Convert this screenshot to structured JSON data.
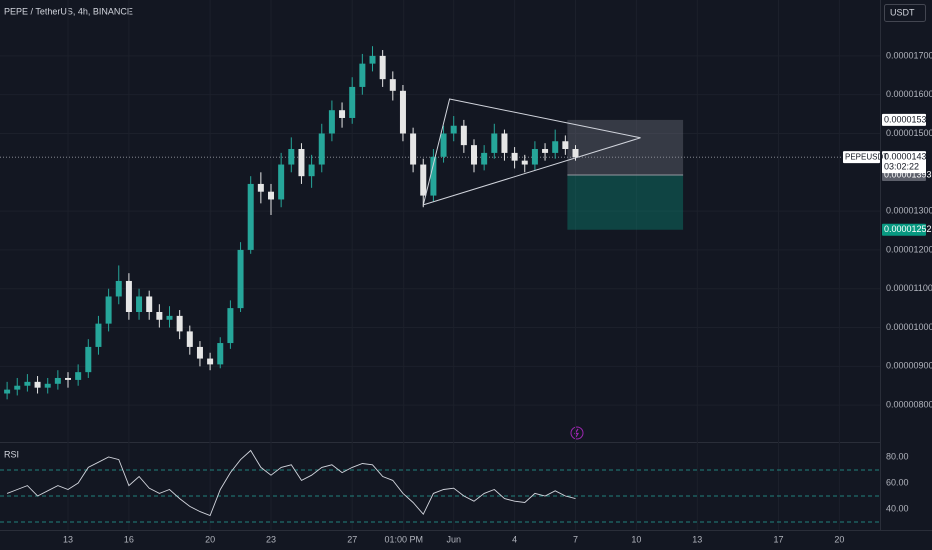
{
  "chart_data": {
    "type": "candlestick",
    "title": "PEPE / TetherUS, 4h, BINANCE",
    "currency": "USDT",
    "symbol": "PEPEUSDT",
    "countdown": "03:02:22",
    "last_price": 1.439e-05,
    "up_color": "#26a69a",
    "down_color": "#e6e6e6",
    "grid": true,
    "x": [
      10,
      10.5,
      11,
      11.5,
      12,
      12.5,
      13,
      13.5,
      14,
      14.5,
      15,
      15.5,
      16,
      16.5,
      17,
      17.5,
      18,
      18.5,
      19,
      19.5,
      20,
      20.5,
      21,
      21.5,
      22,
      22.5,
      23,
      23.5,
      24,
      24.5,
      25,
      25.5,
      26,
      26.5,
      27,
      27.5,
      28,
      28.5,
      29,
      29.5,
      30,
      30.5,
      31,
      31.5,
      32,
      32.5,
      33,
      33.5,
      34,
      34.5,
      35,
      35.5,
      36,
      36.5,
      37,
      37.5,
      38
    ],
    "open": [
      8.3e-06,
      8.4e-06,
      8.5e-06,
      8.6e-06,
      8.45e-06,
      8.55e-06,
      8.7e-06,
      8.65e-06,
      8.85e-06,
      9.5e-06,
      1.01e-05,
      1.08e-05,
      1.12e-05,
      1.04e-05,
      1.08e-05,
      1.04e-05,
      1.02e-05,
      1.03e-05,
      9.9e-06,
      9.5e-06,
      9.2e-06,
      9.05e-06,
      9.6e-06,
      1.05e-05,
      1.2e-05,
      1.37e-05,
      1.35e-05,
      1.33e-05,
      1.42e-05,
      1.46e-05,
      1.39e-05,
      1.42e-05,
      1.5e-05,
      1.56e-05,
      1.54e-05,
      1.62e-05,
      1.68e-05,
      1.7e-05,
      1.64e-05,
      1.61e-05,
      1.5e-05,
      1.42e-05,
      1.34e-05,
      1.44e-05,
      1.5e-05,
      1.52e-05,
      1.47e-05,
      1.42e-05,
      1.45e-05,
      1.5e-05,
      1.45e-05,
      1.43e-05,
      1.42e-05,
      1.46e-05,
      1.45e-05,
      1.48e-05,
      1.46e-05
    ],
    "high": [
      8.6e-06,
      8.7e-06,
      8.8e-06,
      8.75e-06,
      8.7e-06,
      8.9e-06,
      8.85e-06,
      9.05e-06,
      9.7e-06,
      1.03e-05,
      1.1e-05,
      1.16e-05,
      1.14e-05,
      1.1e-05,
      1.095e-05,
      1.06e-05,
      1.055e-05,
      1.045e-05,
      1.005e-05,
      9.65e-06,
      9.35e-06,
      9.75e-06,
      1.07e-05,
      1.22e-05,
      1.39e-05,
      1.4e-05,
      1.37e-05,
      1.45e-05,
      1.49e-05,
      1.475e-05,
      1.445e-05,
      1.525e-05,
      1.585e-05,
      1.58e-05,
      1.645e-05,
      1.705e-05,
      1.725e-05,
      1.715e-05,
      1.66e-05,
      1.625e-05,
      1.515e-05,
      1.435e-05,
      1.46e-05,
      1.52e-05,
      1.545e-05,
      1.535e-05,
      1.485e-05,
      1.47e-05,
      1.525e-05,
      1.51e-05,
      1.465e-05,
      1.445e-05,
      1.48e-05,
      1.475e-05,
      1.51e-05,
      1.495e-05,
      1.47e-05
    ],
    "low": [
      8.15e-06,
      8.25e-06,
      8.35e-06,
      8.3e-06,
      8.3e-06,
      8.4e-06,
      8.45e-06,
      8.5e-06,
      8.7e-06,
      9.3e-06,
      9.9e-06,
      1.06e-05,
      1.02e-05,
      1.02e-05,
      1.02e-05,
      1e-05,
      1e-05,
      9.7e-06,
      9.3e-06,
      9e-06,
      8.9e-06,
      8.95e-06,
      9.45e-06,
      1.04e-05,
      1.19e-05,
      1.32e-05,
      1.29e-05,
      1.31e-05,
      1.4e-05,
      1.37e-05,
      1.36e-05,
      1.4e-05,
      1.48e-05,
      1.515e-05,
      1.525e-05,
      1.6e-05,
      1.66e-05,
      1.62e-05,
      1.585e-05,
      1.48e-05,
      1.4e-05,
      1.31e-05,
      1.325e-05,
      1.425e-05,
      1.48e-05,
      1.45e-05,
      1.4e-05,
      1.405e-05,
      1.435e-05,
      1.43e-05,
      1.41e-05,
      1.4e-05,
      1.405e-05,
      1.43e-05,
      1.435e-05,
      1.445e-05,
      1.43e-05
    ],
    "close": [
      8.4e-06,
      8.5e-06,
      8.6e-06,
      8.45e-06,
      8.55e-06,
      8.7e-06,
      8.65e-06,
      8.85e-06,
      9.5e-06,
      1.01e-05,
      1.08e-05,
      1.12e-05,
      1.04e-05,
      1.08e-05,
      1.04e-05,
      1.02e-05,
      1.03e-05,
      9.9e-06,
      9.5e-06,
      9.2e-06,
      9.05e-06,
      9.6e-06,
      1.05e-05,
      1.2e-05,
      1.37e-05,
      1.35e-05,
      1.33e-05,
      1.42e-05,
      1.46e-05,
      1.39e-05,
      1.42e-05,
      1.5e-05,
      1.56e-05,
      1.54e-05,
      1.62e-05,
      1.68e-05,
      1.7e-05,
      1.64e-05,
      1.61e-05,
      1.5e-05,
      1.42e-05,
      1.34e-05,
      1.44e-05,
      1.5e-05,
      1.52e-05,
      1.47e-05,
      1.42e-05,
      1.45e-05,
      1.5e-05,
      1.45e-05,
      1.43e-05,
      1.42e-05,
      1.46e-05,
      1.45e-05,
      1.48e-05,
      1.46e-05,
      1.439e-05
    ],
    "xlim": [
      9.65,
      53.0
    ],
    "xticks": [
      13,
      16,
      20,
      23,
      27,
      {
        "value": 29.54,
        "label": "01:00 PM"
      },
      {
        "value": 32,
        "label": "Jun"
      },
      {
        "value": 35,
        "label": "4"
      },
      {
        "value": 38,
        "label": "7"
      },
      {
        "value": 41,
        "label": "10"
      },
      {
        "value": 44,
        "label": "13"
      },
      {
        "value": 48,
        "label": "17"
      },
      {
        "value": 51,
        "label": "20"
      }
    ],
    "ylim": [
      7.05e-06,
      1.844e-05
    ],
    "yticks": [
      {
        "value": 1.7e-05,
        "label": "0.00001700"
      },
      {
        "value": 1.6e-05,
        "label": "0.00001600"
      },
      {
        "value": 1.5e-05,
        "label": "0.00001500"
      },
      {
        "value": 1.3e-05,
        "label": "0.00001300"
      },
      {
        "value": 1.2e-05,
        "label": "0.00001200"
      },
      {
        "value": 1.1e-05,
        "label": "0.00001100"
      },
      {
        "value": 1e-05,
        "label": "0.00001000"
      },
      {
        "value": 9e-06,
        "label": "0.00000900"
      },
      {
        "value": 8e-06,
        "label": "0.00000800"
      }
    ],
    "position": {
      "entry": 1.393e-05,
      "stop": 1.535e-05,
      "target": 1.252e-05,
      "x": [
        37.6,
        43.3
      ]
    },
    "triangle": {
      "x": [
        31.8,
        41.2,
        30.5
      ],
      "y": [
        1.589e-05,
        1.489e-05,
        1.316e-05
      ]
    },
    "rsi": {
      "label": "RSI",
      "values": [
        52,
        55,
        58,
        50,
        54,
        58,
        55,
        60,
        72,
        76,
        80,
        78,
        58,
        65,
        56,
        52,
        55,
        48,
        42,
        38,
        35,
        55,
        68,
        78,
        85,
        72,
        66,
        72,
        74,
        62,
        66,
        72,
        74,
        68,
        72,
        75,
        74,
        65,
        62,
        52,
        45,
        36,
        52,
        55,
        56,
        50,
        46,
        52,
        55,
        48,
        46,
        45,
        52,
        50,
        54,
        50,
        48
      ],
      "ylim": [
        27.7,
        90.8
      ],
      "yticks": [
        {
          "value": 80,
          "label": "80.00"
        },
        {
          "value": 60,
          "label": "60.00"
        },
        {
          "value": 40,
          "label": "40.00"
        }
      ],
      "levels": [
        70,
        50,
        30
      ]
    }
  }
}
